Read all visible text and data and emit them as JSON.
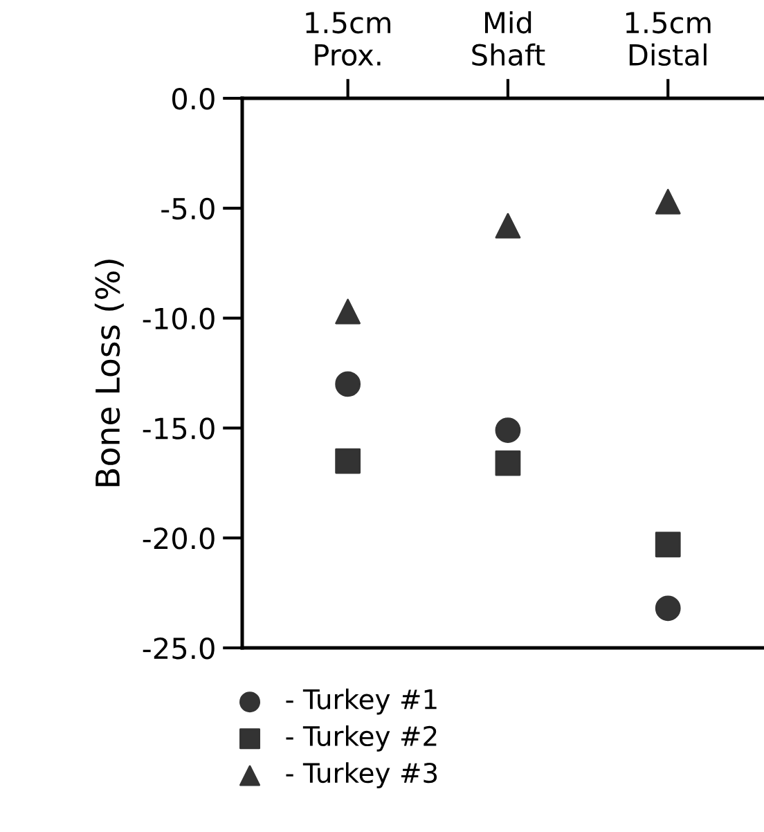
{
  "chart_data": {
    "type": "scatter",
    "ylabel": "Bone Loss (%)",
    "categories": [
      "1.5cm\nProx.",
      "Mid\nShaft",
      "1.5cm\nDistal"
    ],
    "series": [
      {
        "name": "- Turkey #1",
        "color": "#333333",
        "marker": "circle",
        "values": [
          -13.0,
          -15.1,
          -23.2
        ]
      },
      {
        "name": "- Turkey #2",
        "color": "#333333",
        "marker": "square",
        "values": [
          -16.5,
          -16.6,
          -20.3
        ]
      },
      {
        "name": "- Turkey #3",
        "color": "#333333",
        "marker": "triangle",
        "values": [
          -9.7,
          -5.8,
          -4.7
        ]
      }
    ],
    "ylim": [
      -25,
      0
    ],
    "yticks": [
      {
        "value": 0,
        "label": "0.0"
      },
      {
        "value": -5,
        "label": "-5.0"
      },
      {
        "value": -10,
        "label": "-10.0"
      },
      {
        "value": -15,
        "label": "-15.0"
      },
      {
        "value": -20,
        "label": "-20.0"
      },
      {
        "value": -25,
        "label": "-25.0"
      }
    ],
    "grid": false,
    "legend": "bottom"
  }
}
